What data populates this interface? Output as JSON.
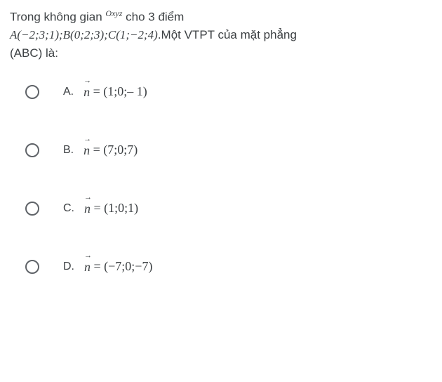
{
  "question": {
    "line1_pre": "Trong không gian ",
    "line1_space": "Oxyz",
    "line1_post": " cho 3 điểm",
    "line2_points": "A(−2;3;1);B(0;2;3);C(1;−2;4)",
    "line2_post": ".Một VTPT của mặt phẳng",
    "line3": "(ABC) là:"
  },
  "options": [
    {
      "letter": "A.",
      "vec": "n",
      "value": "= (1;0;– 1)"
    },
    {
      "letter": "B.",
      "vec": "n",
      "value": "= (7;0;7)"
    },
    {
      "letter": "C.",
      "vec": "n",
      "value": "= (1;0;1)"
    },
    {
      "letter": "D.",
      "vec": "n",
      "value": "= (−7;0;−7)"
    }
  ],
  "styles": {
    "background": "#ffffff",
    "text_color": "#3c4043",
    "radio_border": "#5f6368",
    "body_fontsize": 17,
    "formula_fontsize": 18
  }
}
